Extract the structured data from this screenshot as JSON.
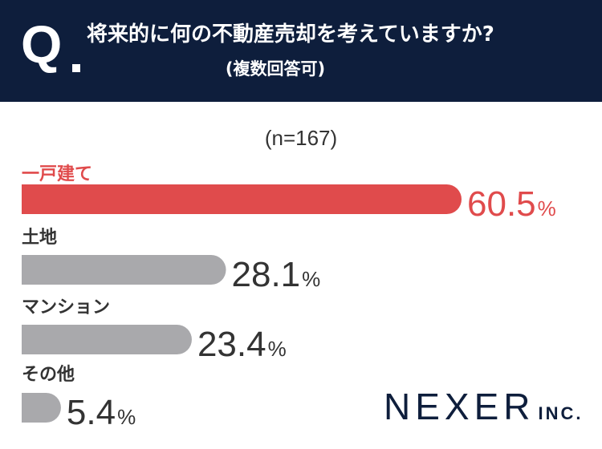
{
  "header": {
    "q_mark": "Q",
    "question": "将来的に何の不動産売却を考えていますか?",
    "subtitle": "(複数回答可)"
  },
  "sample_label": "(n=167)",
  "colors": {
    "header_bg": "#0e1e3c",
    "highlight": "#e04b4c",
    "bar": "#a9a9ac",
    "text": "#333333"
  },
  "chart_data": {
    "type": "bar",
    "orientation": "horizontal",
    "categories": [
      "一戸建て",
      "土地",
      "マンション",
      "その他"
    ],
    "values": [
      60.5,
      28.1,
      23.4,
      5.4
    ],
    "value_labels": [
      "60.5",
      "28.1",
      "23.4",
      "5.4"
    ],
    "unit": "%",
    "highlight_index": 0,
    "xlim": [
      0,
      60.5
    ],
    "grid": false
  },
  "logo": {
    "main": "NEXER",
    "suffix": "INC."
  }
}
